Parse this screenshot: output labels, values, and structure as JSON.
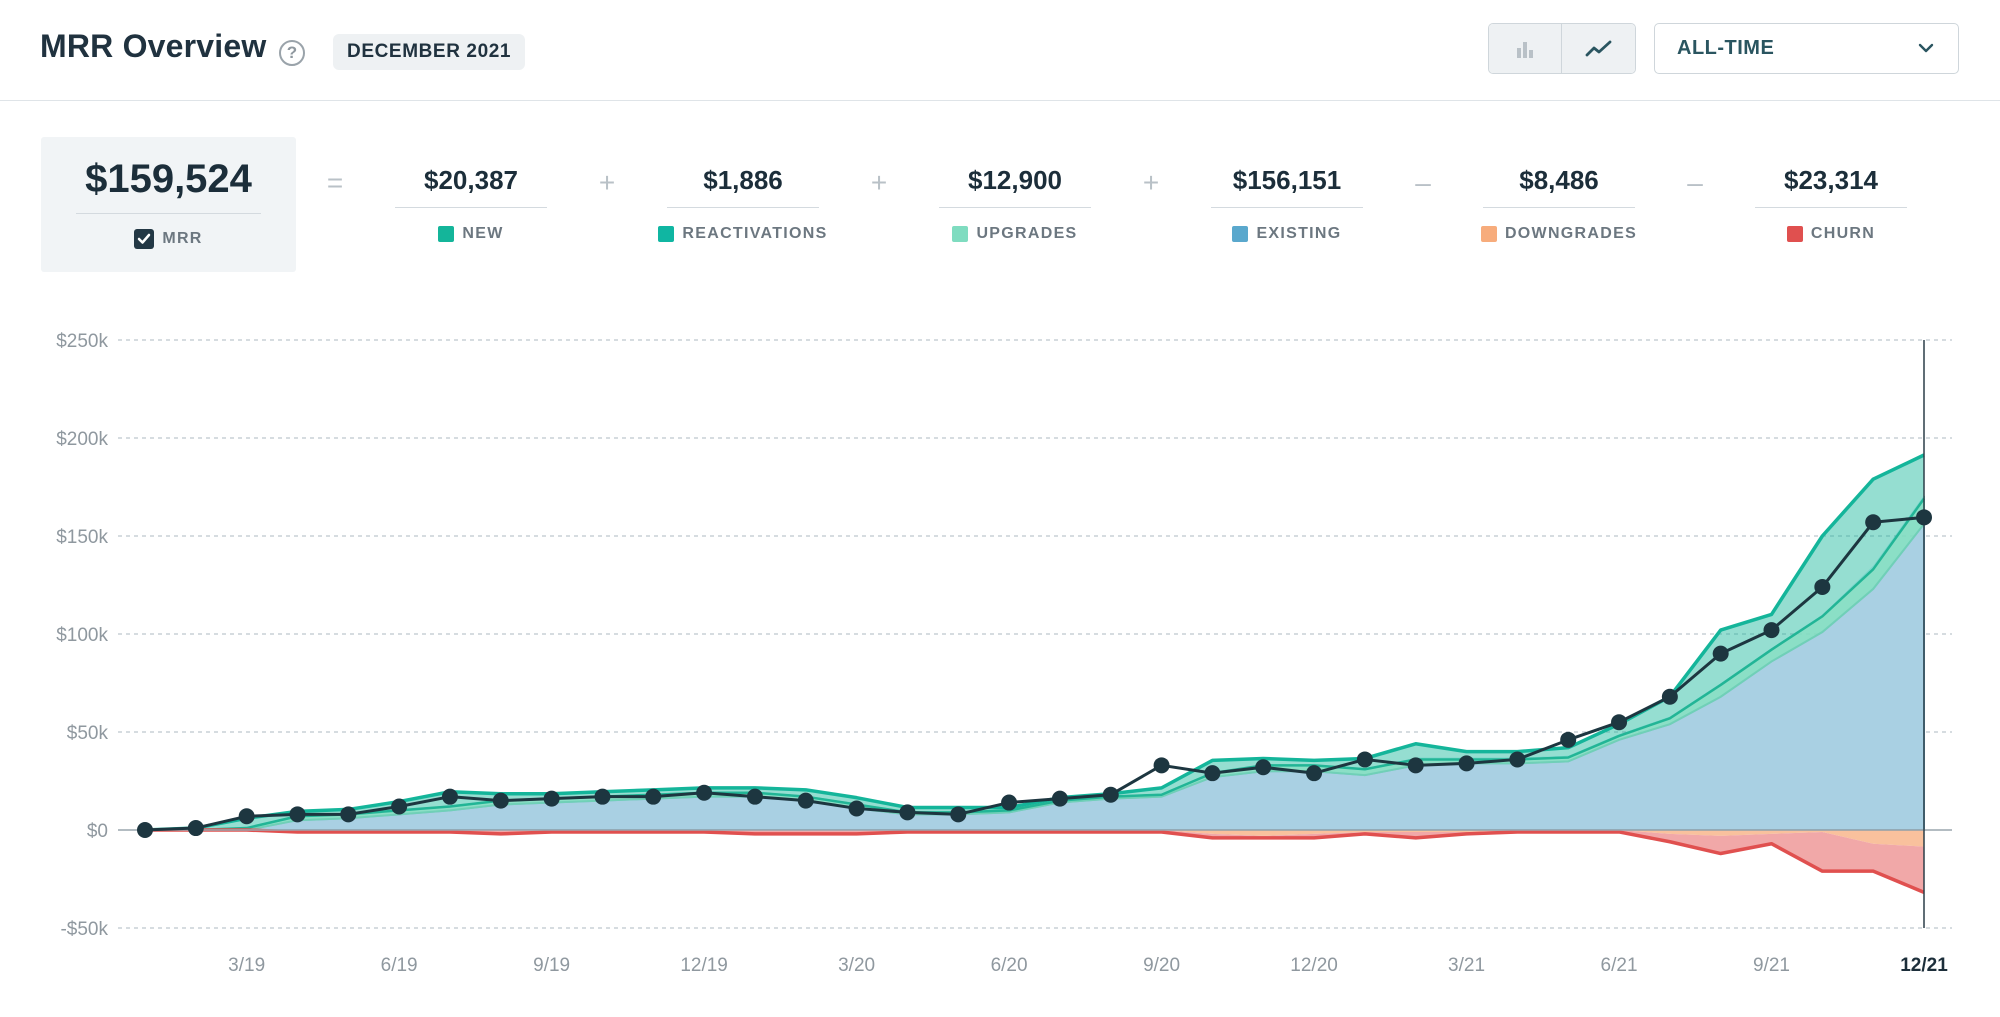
{
  "header": {
    "title": "MRR Overview",
    "help_symbol": "?",
    "date_badge": "DECEMBER 2021",
    "range_select": "ALL-TIME",
    "icons": {
      "bar_view": "bar-chart-icon",
      "line_view": "line-chart-icon",
      "chevron": "chevron-down-icon",
      "help": "help-icon"
    }
  },
  "summary": {
    "mrr": {
      "value": "$159,524",
      "label": "MRR"
    },
    "operators": [
      "=",
      "+",
      "+",
      "+",
      "–",
      "–"
    ],
    "components": [
      {
        "value": "$20,387",
        "label": "NEW",
        "color": "#14b59a"
      },
      {
        "value": "$1,886",
        "label": "REACTIVATIONS",
        "color": "#10b6a2"
      },
      {
        "value": "$12,900",
        "label": "UPGRADES",
        "color": "#7fdcc0"
      },
      {
        "value": "$156,151",
        "label": "EXISTING",
        "color": "#5aa8cd"
      },
      {
        "value": "$8,486",
        "label": "DOWNGRADES",
        "color": "#f7ac7c"
      },
      {
        "value": "$23,314",
        "label": "CHURN",
        "color": "#e0504f"
      }
    ]
  },
  "chart_data": {
    "type": "area",
    "title": "MRR Overview",
    "xlabel": "",
    "ylabel": "",
    "ylim": [
      -50000,
      250000
    ],
    "y_ticks": [
      -50000,
      0,
      50000,
      100000,
      150000,
      200000,
      250000
    ],
    "y_tick_labels": [
      "-$50k",
      "$0",
      "$50k",
      "$100k",
      "$150k",
      "$200k",
      "$250k"
    ],
    "x": [
      "1/19",
      "2/19",
      "3/19",
      "4/19",
      "5/19",
      "6/19",
      "7/19",
      "8/19",
      "9/19",
      "10/19",
      "11/19",
      "12/19",
      "1/20",
      "2/20",
      "3/20",
      "4/20",
      "5/20",
      "6/20",
      "7/20",
      "8/20",
      "9/20",
      "10/20",
      "11/20",
      "12/20",
      "1/21",
      "2/21",
      "3/21",
      "4/21",
      "5/21",
      "6/21",
      "7/21",
      "8/21",
      "9/21",
      "10/21",
      "11/21",
      "12/21"
    ],
    "x_tick_labels": [
      "",
      "",
      "3/19",
      "",
      "",
      "6/19",
      "",
      "",
      "9/19",
      "",
      "",
      "12/19",
      "",
      "",
      "3/20",
      "",
      "",
      "6/20",
      "",
      "",
      "9/20",
      "",
      "",
      "12/20",
      "",
      "",
      "3/21",
      "",
      "",
      "6/21",
      "",
      "",
      "9/21",
      "",
      "",
      "12/21"
    ],
    "grid": true,
    "highlight_x": "12/21",
    "series": [
      {
        "name": "Existing",
        "color": "#a9d0e3",
        "values": [
          0,
          0,
          0,
          5000,
          6000,
          8000,
          10000,
          13000,
          14000,
          15000,
          16000,
          17000,
          17000,
          15000,
          11000,
          8000,
          8000,
          9000,
          14000,
          16000,
          17000,
          27000,
          30000,
          30000,
          28000,
          33000,
          34000,
          34000,
          35000,
          46000,
          54000,
          68000,
          86000,
          101000,
          123000,
          156151
        ]
      },
      {
        "name": "Upgrades",
        "color": "#7fdcc0",
        "values": [
          0,
          0,
          1000,
          2000,
          2000,
          2000,
          2000,
          2000,
          2000,
          2000,
          2000,
          2000,
          2000,
          2000,
          2000,
          1000,
          1000,
          1000,
          1000,
          1000,
          1000,
          2000,
          3000,
          3000,
          3000,
          3000,
          2000,
          2000,
          2000,
          2000,
          3000,
          6000,
          6000,
          8000,
          10000,
          12900
        ]
      },
      {
        "name": "Reactivations",
        "color": "#10b6a2",
        "values": [
          0,
          0,
          0,
          500,
          500,
          500,
          500,
          500,
          500,
          500,
          500,
          500,
          500,
          500,
          500,
          500,
          500,
          500,
          500,
          500,
          500,
          500,
          500,
          500,
          500,
          1000,
          1000,
          1000,
          1000,
          1000,
          1000,
          1000,
          1000,
          1000,
          2000,
          1886
        ]
      },
      {
        "name": "New",
        "color": "#14b59a",
        "values": [
          0,
          1000,
          5000,
          2000,
          2000,
          4000,
          7000,
          3000,
          2000,
          2000,
          2000,
          2000,
          2000,
          3000,
          3000,
          2000,
          2000,
          1000,
          1000,
          1000,
          3000,
          6000,
          3000,
          2000,
          5000,
          7000,
          3000,
          3000,
          4000,
          5000,
          10000,
          27000,
          17000,
          40000,
          44000,
          20387
        ]
      },
      {
        "name": "Downgrades",
        "color": "#f7ac7c",
        "values": [
          0,
          0,
          0,
          0,
          0,
          0,
          0,
          0,
          0,
          0,
          0,
          0,
          0,
          0,
          0,
          0,
          0,
          0,
          0,
          0,
          0,
          -2000,
          -3000,
          -2000,
          -1000,
          -1000,
          -1000,
          0,
          0,
          0,
          -2000,
          -3000,
          -2000,
          -1000,
          -7000,
          -8486
        ]
      },
      {
        "name": "Churn",
        "color": "#e0504f",
        "values": [
          0,
          0,
          0,
          -1000,
          -1000,
          -1000,
          -1000,
          -2000,
          -1000,
          -1000,
          -1000,
          -1000,
          -2000,
          -2000,
          -2000,
          -1000,
          -1000,
          -1000,
          -1000,
          -1000,
          -1000,
          -2000,
          -1000,
          -2000,
          -1000,
          -3000,
          -1000,
          -1000,
          -1000,
          -1000,
          -4000,
          -9000,
          -5000,
          -20000,
          -14000,
          -23314
        ]
      }
    ],
    "mrr_line": {
      "name": "MRR",
      "color": "#1d3640",
      "values": [
        0,
        1000,
        7000,
        8000,
        8000,
        12000,
        17000,
        15000,
        16000,
        17000,
        17000,
        19000,
        17000,
        15000,
        11000,
        9000,
        8000,
        14000,
        16000,
        18000,
        33000,
        29000,
        32000,
        29000,
        36000,
        33000,
        34000,
        36000,
        46000,
        55000,
        68000,
        90000,
        102000,
        124000,
        157000,
        159524
      ]
    }
  }
}
